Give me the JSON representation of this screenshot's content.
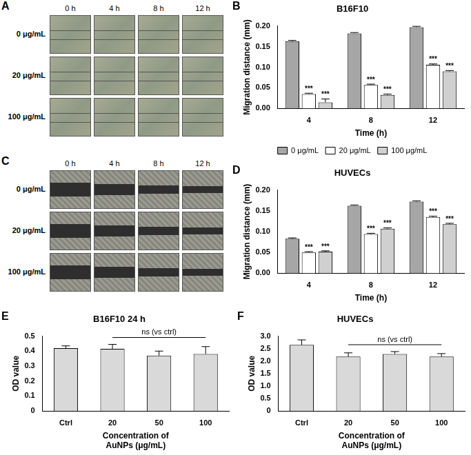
{
  "image_panels": [
    {
      "panel": "A",
      "columns": [
        "0 h",
        "4 h",
        "8 h",
        "12 h"
      ],
      "rows": [
        "0 μg/mL",
        "20 μg/mL",
        "100 μg/mL"
      ]
    },
    {
      "panel": "C",
      "columns": [
        "0 h",
        "4 h",
        "8 h",
        "12 h"
      ],
      "rows": [
        "0 μg/mL",
        "20 μg/mL",
        "100 μg/mL"
      ]
    }
  ],
  "chart_data": [
    {
      "panel": "B",
      "type": "bar",
      "title": "B16F10",
      "x_label": "Time (h)",
      "y_label": "Migration distance (mm)",
      "categories": [
        "4",
        "8",
        "12"
      ],
      "series": [
        {
          "name": "0 μg/mL",
          "color": "#a6a6a6",
          "values": [
            0.163,
            0.182,
            0.197
          ],
          "errors": [
            0.002,
            0.002,
            0.002
          ]
        },
        {
          "name": "20 μg/mL",
          "color": "#ffffff",
          "values": [
            0.035,
            0.057,
            0.106
          ],
          "errors": [
            0.002,
            0.002,
            0.002
          ],
          "significance": [
            "***",
            "***",
            "***"
          ]
        },
        {
          "name": "100 μg/mL",
          "color": "#d0d0d0",
          "values": [
            0.015,
            0.033,
            0.09
          ],
          "errors": [
            0.008,
            0.002,
            0.002
          ],
          "significance": [
            "***",
            "***",
            "***"
          ]
        }
      ],
      "ylim": [
        0,
        0.2
      ],
      "yticks": [
        {
          "value": 0,
          "label": "0.00"
        },
        0.05,
        {
          "value": 0.1,
          "label": "0.10"
        },
        0.15,
        {
          "value": 0.2,
          "label": "0.20"
        }
      ],
      "grid": false,
      "legend": "bottom"
    },
    {
      "panel": "D",
      "type": "bar",
      "title": "HUVECs",
      "x_label": "Time (h)",
      "y_label": "Migration distance (mm)",
      "categories": [
        "4",
        "8",
        "12"
      ],
      "series": [
        {
          "name": "0 μg/mL",
          "color": "#a6a6a6",
          "values": [
            0.083,
            0.162,
            0.172
          ],
          "errors": [
            0.002,
            0.002,
            0.002
          ]
        },
        {
          "name": "20 μg/mL",
          "color": "#ffffff",
          "values": [
            0.05,
            0.094,
            0.135
          ],
          "errors": [
            0.002,
            0.002,
            0.002
          ],
          "significance": [
            "***",
            "***",
            "***"
          ]
        },
        {
          "name": "100 μg/mL",
          "color": "#d0d0d0",
          "values": [
            0.052,
            0.107,
            0.118
          ],
          "errors": [
            0.002,
            0.002,
            0.002
          ],
          "significance": [
            "***",
            "***",
            "***"
          ]
        }
      ],
      "ylim": [
        0,
        0.2
      ],
      "yticks": [
        {
          "value": 0,
          "label": "0.00"
        },
        0.05,
        {
          "value": 0.1,
          "label": "0.10"
        },
        0.15,
        {
          "value": 0.2,
          "label": "0.20"
        }
      ],
      "grid": false
    },
    {
      "panel": "E",
      "type": "bar",
      "title": "B16F10 24 h",
      "x_label": [
        "Concentration of",
        "AuNPs (μg/mL)"
      ],
      "y_label": "OD value",
      "categories": [
        "Ctrl",
        "20",
        "50",
        "100"
      ],
      "values": [
        0.42,
        0.415,
        0.37,
        0.38
      ],
      "errors": [
        0.015,
        0.03,
        0.03,
        0.05
      ],
      "color": "#d9d9d9",
      "ylim": [
        0,
        0.5
      ],
      "yticks": [
        0,
        0.1,
        0.2,
        0.3,
        0.4,
        0.5
      ],
      "grid": false,
      "annotations": [
        {
          "text": "ns (vs ctrl)",
          "from": "20",
          "to": "100"
        }
      ]
    },
    {
      "panel": "F",
      "type": "bar",
      "title": "HUVECs",
      "x_label": [
        "Concentration of",
        "AuNPs (μg/mL)"
      ],
      "y_label": "OD value",
      "categories": [
        "Ctrl",
        "20",
        "50",
        "100"
      ],
      "values": [
        2.65,
        2.18,
        2.28,
        2.18
      ],
      "errors": [
        0.2,
        0.15,
        0.1,
        0.12
      ],
      "color": "#d9d9d9",
      "ylim": [
        0,
        3
      ],
      "yticks": [
        0,
        0.5,
        {
          "value": 1,
          "label": "1.0"
        },
        1.5,
        {
          "value": 2,
          "label": "2.0"
        },
        2.5,
        {
          "value": 3,
          "label": "3.0"
        }
      ],
      "grid": false,
      "annotations": [
        {
          "text": "ns (vs ctrl)",
          "from": "20",
          "to": "100"
        }
      ]
    }
  ]
}
